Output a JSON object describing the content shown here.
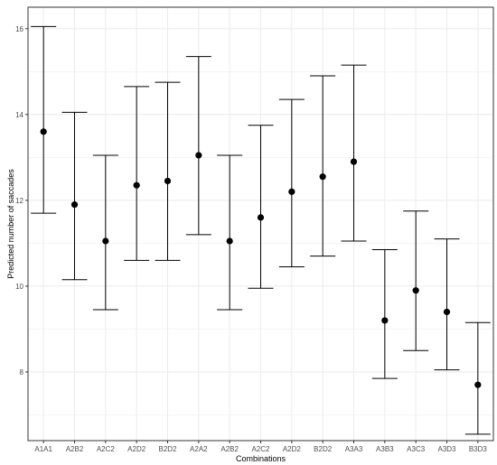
{
  "chart_data": {
    "type": "errorbar",
    "xlabel": "Combinations",
    "ylabel": "Predicted number of saccades",
    "ylim": [
      6.4,
      16.5
    ],
    "yticks": [
      8,
      10,
      12,
      14,
      16
    ],
    "grid": true,
    "legend": "none",
    "categories": [
      "A1A1",
      "A2B2",
      "A2C2",
      "A2D2",
      "B2D2",
      "A2A2",
      "A2B2",
      "A2C2",
      "A2D2",
      "B2D2",
      "A3A3",
      "A3B3",
      "A3C3",
      "A3D3",
      "B3D3"
    ],
    "values": [
      13.6,
      11.9,
      11.05,
      12.35,
      12.45,
      13.05,
      11.05,
      11.6,
      12.2,
      12.55,
      12.9,
      9.2,
      9.9,
      9.4,
      7.7
    ],
    "lower": [
      11.7,
      10.15,
      9.45,
      10.6,
      10.6,
      11.2,
      9.45,
      9.95,
      10.45,
      10.7,
      11.05,
      7.85,
      8.5,
      8.05,
      6.55
    ],
    "upper": [
      16.05,
      14.05,
      13.05,
      14.65,
      14.75,
      15.35,
      13.05,
      13.75,
      14.35,
      14.9,
      15.15,
      10.85,
      11.75,
      11.1,
      9.15
    ]
  },
  "colors": {
    "point": "#000000",
    "errorbar": "#000000",
    "grid": "#ebebeb",
    "panel_border": "#333333",
    "background": "#ffffff"
  }
}
